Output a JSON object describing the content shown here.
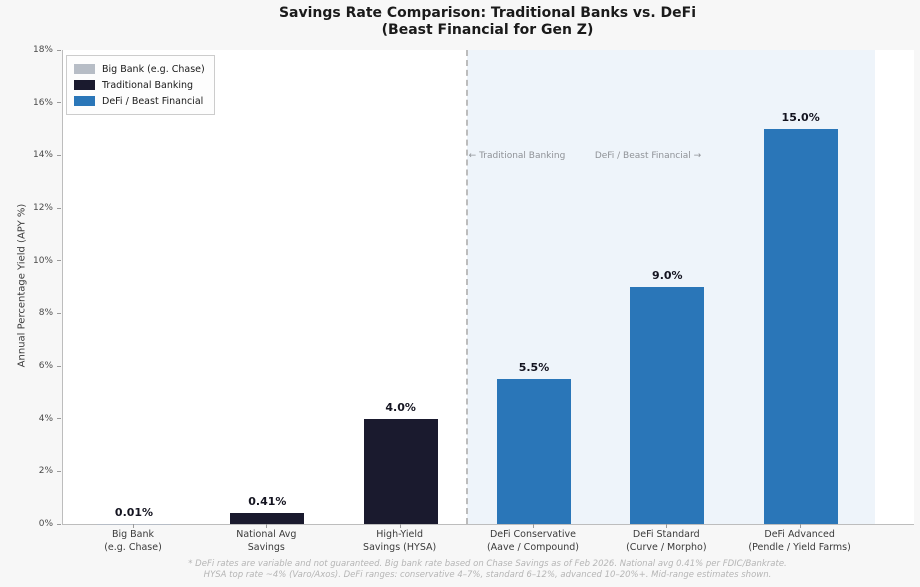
{
  "title": {
    "line1": "Savings Rate Comparison: Traditional Banks vs. DeFi",
    "line2": "(Beast Financial for Gen Z)"
  },
  "chart_data": {
    "type": "bar",
    "title": "Savings Rate Comparison: Traditional Banks vs. DeFi (Beast Financial for Gen Z)",
    "xlabel": "",
    "ylabel": "Annual Percentage Yield (APY %)",
    "ylim": [
      0,
      18
    ],
    "grid": false,
    "legend_position": "upper-left",
    "categories": [
      "Big Bank\n(e.g. Chase)",
      "National Avg\nSavings",
      "High-Yield\nSavings (HYSA)",
      "DeFi Conservative\n(Aave / Compound)",
      "DeFi Standard\n(Curve / Morpho)",
      "DeFi Advanced\n(Pendle / Yield Farms)"
    ],
    "values": [
      0.01,
      0.41,
      4.0,
      5.5,
      9.0,
      15.0
    ],
    "value_labels": [
      "0.01%",
      "0.41%",
      "4.0%",
      "5.5%",
      "9.0%",
      "15.0%"
    ],
    "bar_colors": [
      "#b7bdc6",
      "#1a1a2e",
      "#1a1a2e",
      "#2a76b8",
      "#2a76b8",
      "#2a76b8"
    ],
    "ytick_values": [
      0,
      2,
      4,
      6,
      8,
      10,
      12,
      14,
      16,
      18
    ],
    "ytick_labels": [
      "0%",
      "2%",
      "4%",
      "6%",
      "8%",
      "10%",
      "12%",
      "14%",
      "16%",
      "18%"
    ],
    "legend": [
      {
        "label": "Big Bank (e.g. Chase)",
        "color": "#b7bdc6"
      },
      {
        "label": "Traditional Banking",
        "color": "#1a1a2e"
      },
      {
        "label": "DeFi / Beast Financial",
        "color": "#2a76b8"
      }
    ],
    "annotations": [
      {
        "text": "← Traditional Banking"
      },
      {
        "text": "DeFi / Beast Financial →"
      }
    ],
    "separator_after_category": "High-Yield\nSavings (HYSA)",
    "colors": {
      "figure_background": "#f7f7f7",
      "plot_background": "#ffffff",
      "defi_region_highlight": "#eef4fa",
      "separator_line": "#bcbcbc",
      "navy": "#1a1a2e",
      "blue": "#2a76b8",
      "silver": "#b7bdc6"
    }
  },
  "footnote": {
    "line1": "* DeFi rates are variable and not guaranteed. Big bank rate based on Chase Savings as of Feb 2026. National avg 0.41% per FDIC/Bankrate.",
    "line2": "HYSA top rate ~4% (Varo/Axos). DeFi ranges: conservative 4–7%, standard 6–12%, advanced 10–20%+. Mid-range estimates shown."
  }
}
